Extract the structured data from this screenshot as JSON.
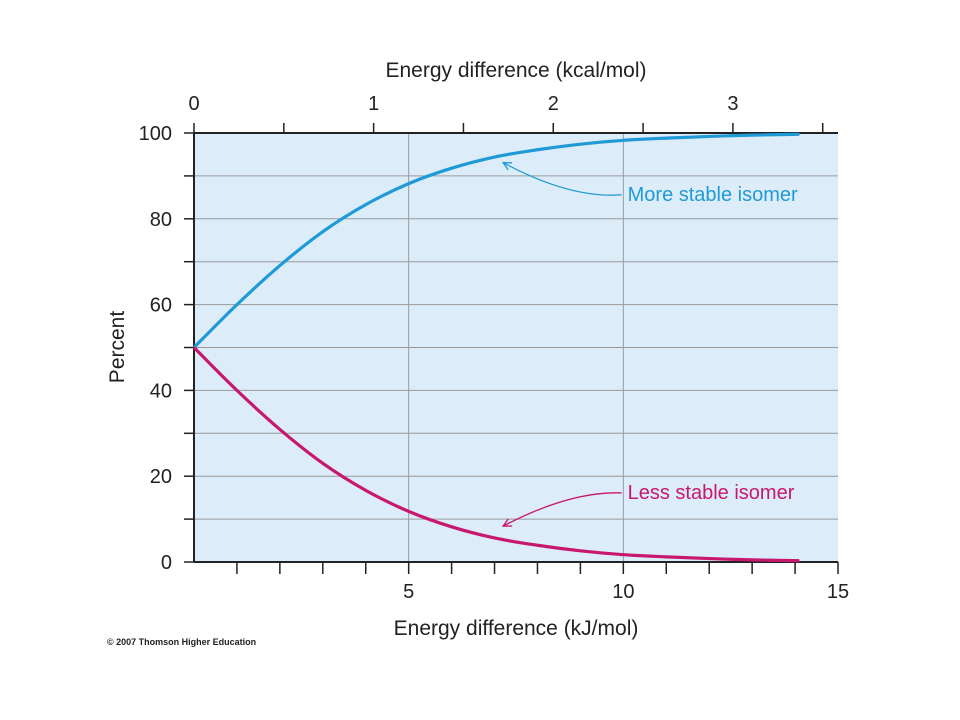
{
  "chart_data": {
    "type": "line",
    "xlabel": "Energy difference (kJ/mol)",
    "x2label": "Energy difference (kcal/mol)",
    "ylabel": "Percent",
    "xlim": [
      0,
      15
    ],
    "ylim": [
      0,
      100
    ],
    "x_ticks": [
      5,
      10,
      15
    ],
    "x_minor_step": 1,
    "x2_ticks": [
      0,
      1,
      2,
      3
    ],
    "x2_minor_step": 0.5,
    "y_ticks": [
      0,
      20,
      40,
      60,
      80,
      100
    ],
    "y_minor_step": 10,
    "grid": true,
    "plot_background": "#dcedf9",
    "series": [
      {
        "name": "More stable isomer",
        "color": "#1f9ad6",
        "x": [
          0,
          1,
          2,
          3,
          4,
          5,
          6,
          7,
          8,
          9,
          10,
          11,
          12,
          13,
          14.1
        ],
        "y": [
          50.0,
          60.0,
          69.1,
          77.0,
          83.3,
          88.2,
          91.8,
          94.4,
          96.1,
          97.4,
          98.3,
          98.8,
          99.2,
          99.5,
          99.7
        ],
        "annotation_at": [
          7.2,
          94.5
        ],
        "label_pos": [
          10.1,
          84.2
        ]
      },
      {
        "name": "Less stable isomer",
        "color": "#c8176f",
        "x": [
          0,
          1,
          2,
          3,
          4,
          5,
          6,
          7,
          8,
          9,
          10,
          11,
          12,
          13,
          14.1
        ],
        "y": [
          50.0,
          40.0,
          30.9,
          23.0,
          16.7,
          11.8,
          8.2,
          5.6,
          3.9,
          2.6,
          1.7,
          1.2,
          0.8,
          0.5,
          0.3
        ],
        "annotation_at": [
          7.2,
          7.2
        ],
        "label_pos": [
          10.1,
          14.7
        ]
      }
    ]
  },
  "credit": "© 2007 Thomson Higher Education"
}
